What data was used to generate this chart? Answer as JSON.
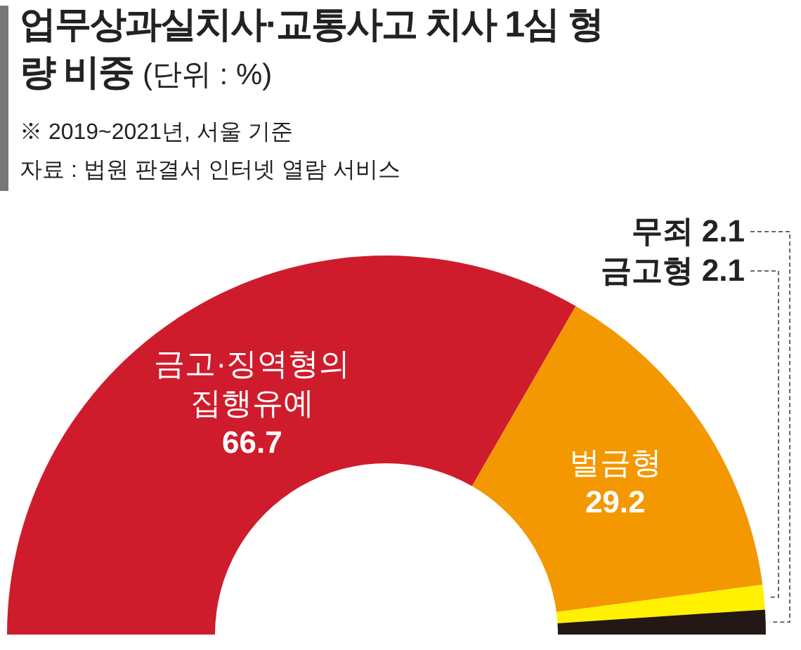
{
  "chart_data": {
    "type": "donut",
    "title": "업무상과실치사·교통사고 치사 1심 형량 비중",
    "subtitle": "(단위 : %)",
    "annotations": [
      "※ 2019~2021년, 서울 기준",
      "자료 : 법원 판결서 인터넷 열람 서비스"
    ],
    "categories": [
      "금고·징역형의 집행유예",
      "벌금형",
      "금고형",
      "무죄"
    ],
    "values": [
      66.7,
      29.2,
      2.1,
      2.1
    ],
    "colors": [
      "#cf1c2c",
      "#f39800",
      "#fff100",
      "#231815"
    ],
    "data_labels": true
  }
}
